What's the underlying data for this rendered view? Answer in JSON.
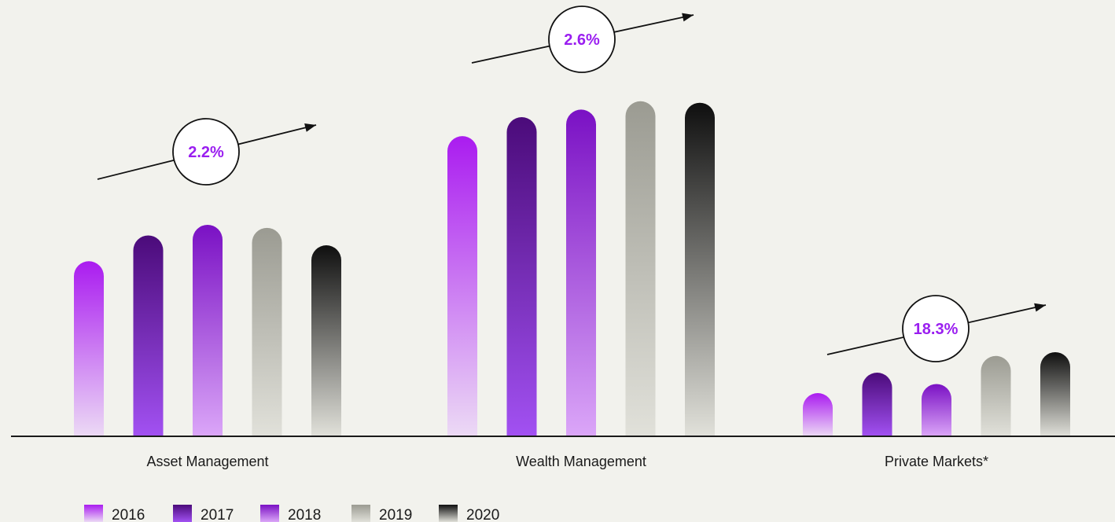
{
  "chart_data": {
    "type": "bar",
    "title": "",
    "xlabel": "",
    "ylabel": "",
    "categories": [
      "Asset Management",
      "Wealth Management",
      "Private Markets*"
    ],
    "series": [
      {
        "name": "2016",
        "values": [
          231,
          396,
          57
        ]
      },
      {
        "name": "2017",
        "values": [
          265,
          421,
          84
        ]
      },
      {
        "name": "2018",
        "values": [
          279,
          431,
          69
        ]
      },
      {
        "name": "2019",
        "values": [
          275,
          442,
          106
        ]
      },
      {
        "name": "2020",
        "values": [
          252,
          440,
          111
        ]
      }
    ],
    "annotations": [
      {
        "category": "Asset Management",
        "text": "2.2%"
      },
      {
        "category": "Wealth Management",
        "text": "2.6%"
      },
      {
        "category": "Private Markets*",
        "text": "18.3%"
      }
    ],
    "ylim": [
      0,
      560
    ],
    "grid": false,
    "legend_position": "bottom-left",
    "colors": {
      "2016_top": "#aa1cf0",
      "2016_bottom": "#ecdaf5",
      "2017_top": "#4b0b7a",
      "2017_bottom": "#a251f2",
      "2018_top": "#7a11c4",
      "2018_bottom": "#dba6f8",
      "2019_top": "#9b9b92",
      "2019_bottom": "#e1e1da",
      "2020_top": "#0f0f0f",
      "2020_bottom": "#e1e1da",
      "accent": "#9a1ef0",
      "background": "#f2f2ed"
    }
  }
}
